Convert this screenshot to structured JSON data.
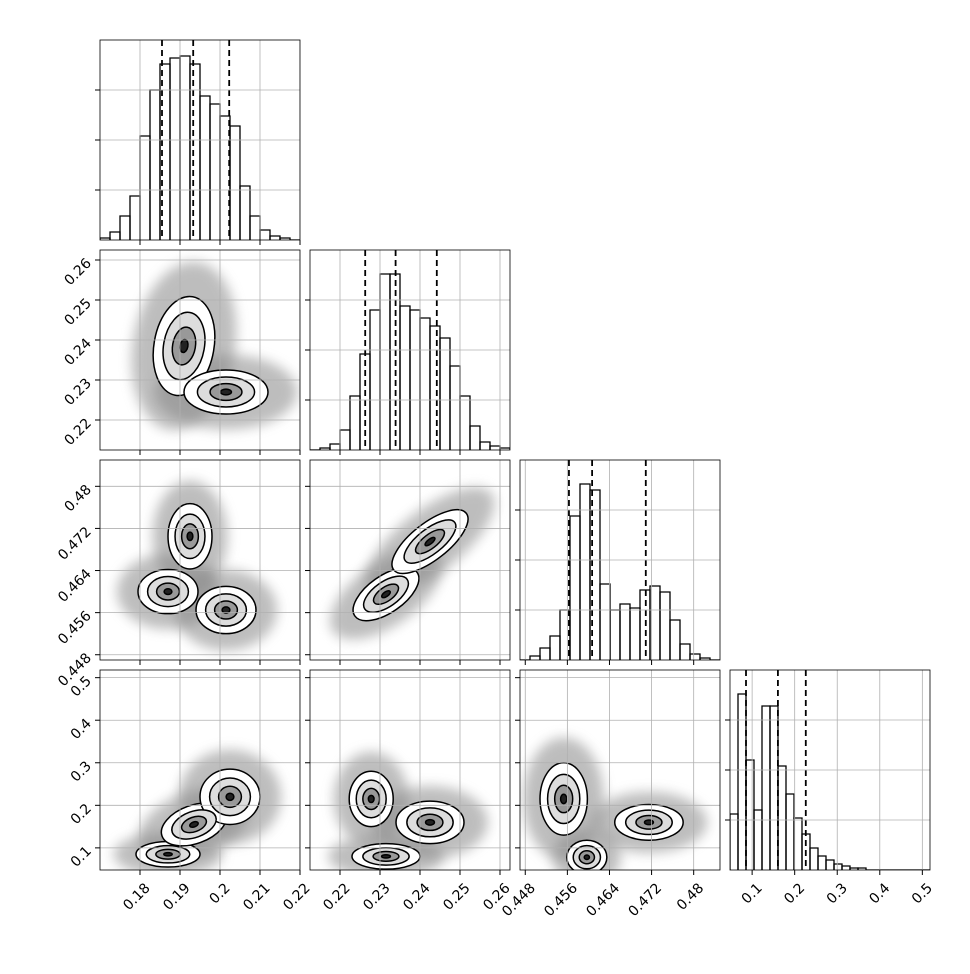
{
  "chart_data": [
    {
      "type": "histogram",
      "xlim": [
        0.17,
        0.22
      ],
      "xticks": [
        0.18,
        0.19,
        0.2,
        0.21,
        0.22
      ],
      "ylim": [
        0,
        100
      ],
      "yticks": [
        25,
        50,
        75
      ],
      "grid": true,
      "x_tick_labels": false,
      "y_tick_labels": false,
      "bins": [
        0.17,
        0.1725,
        0.175,
        0.1775,
        0.18,
        0.1825,
        0.185,
        0.1875,
        0.19,
        0.1925,
        0.195,
        0.1975,
        0.2,
        0.2025,
        0.205,
        0.2075,
        0.21,
        0.2125,
        0.215,
        0.2175,
        0.22
      ],
      "values": [
        1,
        4,
        12,
        22,
        52,
        75,
        88,
        91,
        92,
        88,
        72,
        68,
        62,
        57,
        27,
        12,
        5,
        2,
        1,
        0
      ],
      "quantiles": [
        0.1855,
        0.1933,
        0.2023
      ]
    },
    {
      "type": "contour",
      "xlim": [
        0.17,
        0.22
      ],
      "xticks": [
        0.18,
        0.19,
        0.2,
        0.21,
        0.22
      ],
      "ylim": [
        0.2125,
        0.2625
      ],
      "yticks": [
        0.22,
        0.23,
        0.24,
        0.25,
        0.26
      ],
      "grid": true,
      "x_tick_labels": false,
      "y_tick_labels": true,
      "blobs": [
        {
          "x": 0.191,
          "y": 0.2385,
          "rx": 0.0075,
          "ry": 0.0125,
          "tilt": 10
        },
        {
          "x": 0.2015,
          "y": 0.227,
          "rx": 0.0105,
          "ry": 0.0055,
          "tilt": 0
        }
      ]
    },
    {
      "type": "histogram",
      "xlim": [
        0.2125,
        0.2625
      ],
      "xticks": [
        0.22,
        0.23,
        0.24,
        0.25,
        0.26
      ],
      "ylim": [
        0,
        100
      ],
      "yticks": [
        25,
        50,
        75
      ],
      "grid": true,
      "x_tick_labels": false,
      "y_tick_labels": false,
      "bins": [
        0.2125,
        0.215,
        0.2175,
        0.22,
        0.2225,
        0.225,
        0.2275,
        0.23,
        0.2325,
        0.235,
        0.2375,
        0.24,
        0.2425,
        0.245,
        0.2475,
        0.25,
        0.2525,
        0.255,
        0.2575,
        0.26,
        0.2625
      ],
      "values": [
        0,
        1,
        3,
        10,
        27,
        48,
        70,
        88,
        88,
        72,
        70,
        66,
        62,
        56,
        42,
        27,
        12,
        4,
        2,
        1
      ],
      "quantiles": [
        0.2263,
        0.2339,
        0.2442
      ]
    },
    {
      "type": "contour",
      "xlim": [
        0.17,
        0.22
      ],
      "xticks": [
        0.18,
        0.19,
        0.2,
        0.21,
        0.22
      ],
      "ylim": [
        0.447,
        0.485
      ],
      "yticks": [
        0.448,
        0.456,
        0.464,
        0.472,
        0.48
      ],
      "grid": true,
      "x_tick_labels": false,
      "y_tick_labels": true,
      "blobs": [
        {
          "x": 0.187,
          "y": 0.46,
          "rx": 0.0075,
          "ry": 0.0042,
          "tilt": 0
        },
        {
          "x": 0.1925,
          "y": 0.4705,
          "rx": 0.0055,
          "ry": 0.0062,
          "tilt": 0
        },
        {
          "x": 0.2015,
          "y": 0.4565,
          "rx": 0.0075,
          "ry": 0.0045,
          "tilt": 0
        }
      ]
    },
    {
      "type": "contour",
      "xlim": [
        0.2125,
        0.2625
      ],
      "xticks": [
        0.22,
        0.23,
        0.24,
        0.25,
        0.26
      ],
      "ylim": [
        0.447,
        0.485
      ],
      "yticks": [
        0.448,
        0.456,
        0.464,
        0.472,
        0.48
      ],
      "grid": true,
      "x_tick_labels": false,
      "y_tick_labels": false,
      "blobs": [
        {
          "x": 0.2315,
          "y": 0.4595,
          "rx": 0.0095,
          "ry": 0.0035,
          "tilt": -35
        },
        {
          "x": 0.2425,
          "y": 0.4695,
          "rx": 0.0115,
          "ry": 0.0035,
          "tilt": -38
        }
      ]
    },
    {
      "type": "histogram",
      "xlim": [
        0.447,
        0.485
      ],
      "xticks": [
        0.448,
        0.456,
        0.464,
        0.472,
        0.48
      ],
      "ylim": [
        0,
        100
      ],
      "yticks": [
        25,
        50,
        75
      ],
      "grid": true,
      "x_tick_labels": false,
      "y_tick_labels": false,
      "bins": [
        0.447,
        0.4489,
        0.4508,
        0.4527,
        0.4546,
        0.4565,
        0.4584,
        0.4603,
        0.4622,
        0.4641,
        0.466,
        0.4679,
        0.4698,
        0.4717,
        0.4736,
        0.4755,
        0.4774,
        0.4793,
        0.4812,
        0.4831,
        0.485
      ],
      "values": [
        0,
        2,
        6,
        12,
        25,
        72,
        88,
        85,
        38,
        25,
        28,
        26,
        35,
        37,
        34,
        20,
        8,
        3,
        1,
        0
      ],
      "quantiles": [
        0.4563,
        0.4607,
        0.4709
      ]
    },
    {
      "type": "contour",
      "xlim": [
        0.17,
        0.22
      ],
      "xticks": [
        0.18,
        0.19,
        0.2,
        0.21,
        0.22
      ],
      "ylim": [
        0.048,
        0.518
      ],
      "yticks": [
        0.1,
        0.2,
        0.3,
        0.4,
        0.5
      ],
      "grid": true,
      "x_tick_labels": true,
      "y_tick_labels": true,
      "blobs": [
        {
          "x": 0.187,
          "y": 0.085,
          "rx": 0.008,
          "ry": 0.03,
          "tilt": 0
        },
        {
          "x": 0.1935,
          "y": 0.155,
          "rx": 0.0085,
          "ry": 0.045,
          "tilt": -20
        },
        {
          "x": 0.2025,
          "y": 0.22,
          "rx": 0.0075,
          "ry": 0.065,
          "tilt": 0
        }
      ]
    },
    {
      "type": "contour",
      "xlim": [
        0.2125,
        0.2625
      ],
      "xticks": [
        0.22,
        0.23,
        0.24,
        0.25,
        0.26
      ],
      "ylim": [
        0.048,
        0.518
      ],
      "yticks": [
        0.1,
        0.2,
        0.3,
        0.4,
        0.5
      ],
      "grid": true,
      "x_tick_labels": true,
      "y_tick_labels": false,
      "blobs": [
        {
          "x": 0.2278,
          "y": 0.215,
          "rx": 0.0055,
          "ry": 0.065,
          "tilt": 0
        },
        {
          "x": 0.2315,
          "y": 0.08,
          "rx": 0.0085,
          "ry": 0.03,
          "tilt": 0
        },
        {
          "x": 0.2425,
          "y": 0.16,
          "rx": 0.0085,
          "ry": 0.05,
          "tilt": 0
        }
      ]
    },
    {
      "type": "contour",
      "xlim": [
        0.447,
        0.485
      ],
      "xticks": [
        0.448,
        0.456,
        0.464,
        0.472,
        0.48
      ],
      "ylim": [
        0.048,
        0.518
      ],
      "yticks": [
        0.1,
        0.2,
        0.3,
        0.4,
        0.5
      ],
      "grid": true,
      "x_tick_labels": true,
      "y_tick_labels": false,
      "blobs": [
        {
          "x": 0.4553,
          "y": 0.215,
          "rx": 0.0045,
          "ry": 0.085,
          "tilt": 0
        },
        {
          "x": 0.4597,
          "y": 0.078,
          "rx": 0.0038,
          "ry": 0.04,
          "tilt": 0
        },
        {
          "x": 0.4715,
          "y": 0.16,
          "rx": 0.0065,
          "ry": 0.042,
          "tilt": 0
        }
      ]
    },
    {
      "type": "histogram",
      "xlim": [
        0.048,
        0.518
      ],
      "xticks": [
        0.1,
        0.2,
        0.3,
        0.4,
        0.5
      ],
      "ylim": [
        0,
        100
      ],
      "yticks": [
        25,
        50,
        75
      ],
      "grid": true,
      "x_tick_labels": true,
      "y_tick_labels": false,
      "bins": [
        0.048,
        0.0668,
        0.0856,
        0.1044,
        0.1232,
        0.142,
        0.1608,
        0.1796,
        0.1984,
        0.2172,
        0.236,
        0.2548,
        0.2736,
        0.2924,
        0.3112,
        0.33,
        0.3488,
        0.3676,
        0.3864,
        0.4052,
        0.424,
        0.4428,
        0.4616,
        0.4804,
        0.4992,
        0.518
      ],
      "values": [
        28,
        88,
        55,
        30,
        82,
        82,
        52,
        38,
        26,
        18,
        11,
        7,
        5,
        3,
        2,
        1,
        1,
        0,
        0,
        0,
        0,
        0,
        0,
        0,
        0
      ],
      "quantiles": [
        0.0856,
        0.1606,
        0.2261
      ]
    }
  ]
}
